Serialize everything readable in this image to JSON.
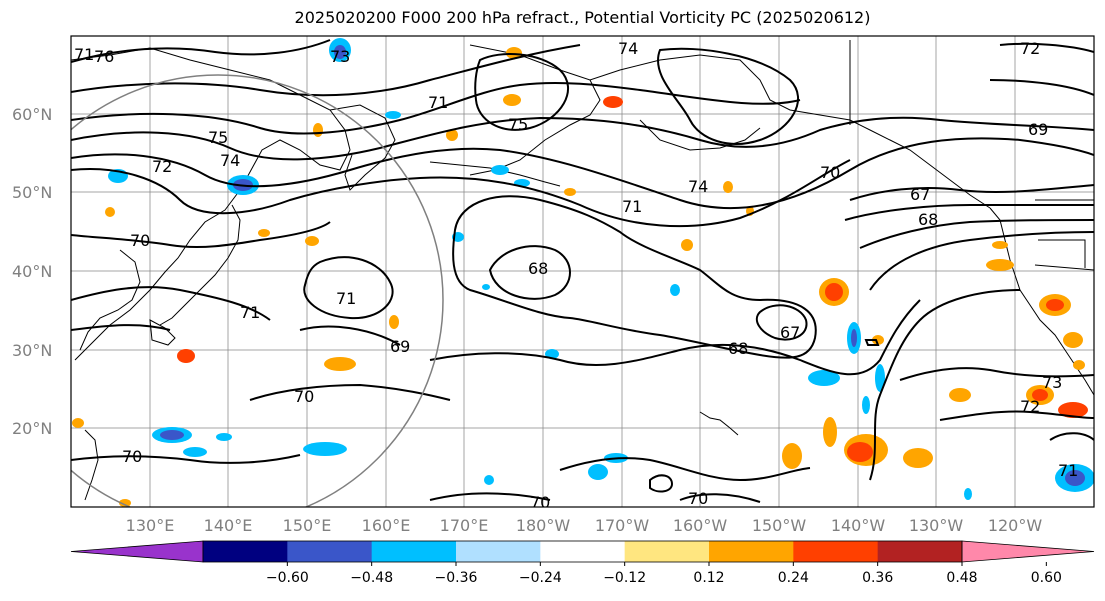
{
  "title": "2025020200 F000 200 hPa refract., Potential Vorticity PC (2025020612)",
  "lat_labels": [
    "60°N",
    "50°N",
    "40°N",
    "30°N",
    "20°N"
  ],
  "lon_labels": [
    "130°E",
    "140°E",
    "150°E",
    "160°E",
    "170°E",
    "180°W",
    "170°W",
    "160°W",
    "150°W",
    "140°W",
    "130°W",
    "120°W"
  ],
  "colorbar": {
    "colors": [
      "#9933cc",
      "#000080",
      "#3a56c9",
      "#00bfff",
      "#b0e0ff",
      "#ffffff",
      "#ffe680",
      "#ffa500",
      "#ff4000",
      "#b22222",
      "#ff88aa"
    ],
    "tick_labels": [
      "-0.60",
      "-0.48",
      "-0.36",
      "-0.24",
      "-0.12",
      "0.12",
      "0.24",
      "0.36",
      "0.48",
      "0.60"
    ]
  },
  "contour_labels": [
    "71",
    "76",
    "73",
    "74",
    "72",
    "75",
    "75",
    "74",
    "72",
    "70",
    "71",
    "69",
    "67",
    "68",
    "74",
    "71",
    "68",
    "70",
    "71",
    "71",
    "69",
    "67",
    "68",
    "70",
    "70",
    "70",
    "73",
    "72",
    "71",
    "70"
  ]
}
